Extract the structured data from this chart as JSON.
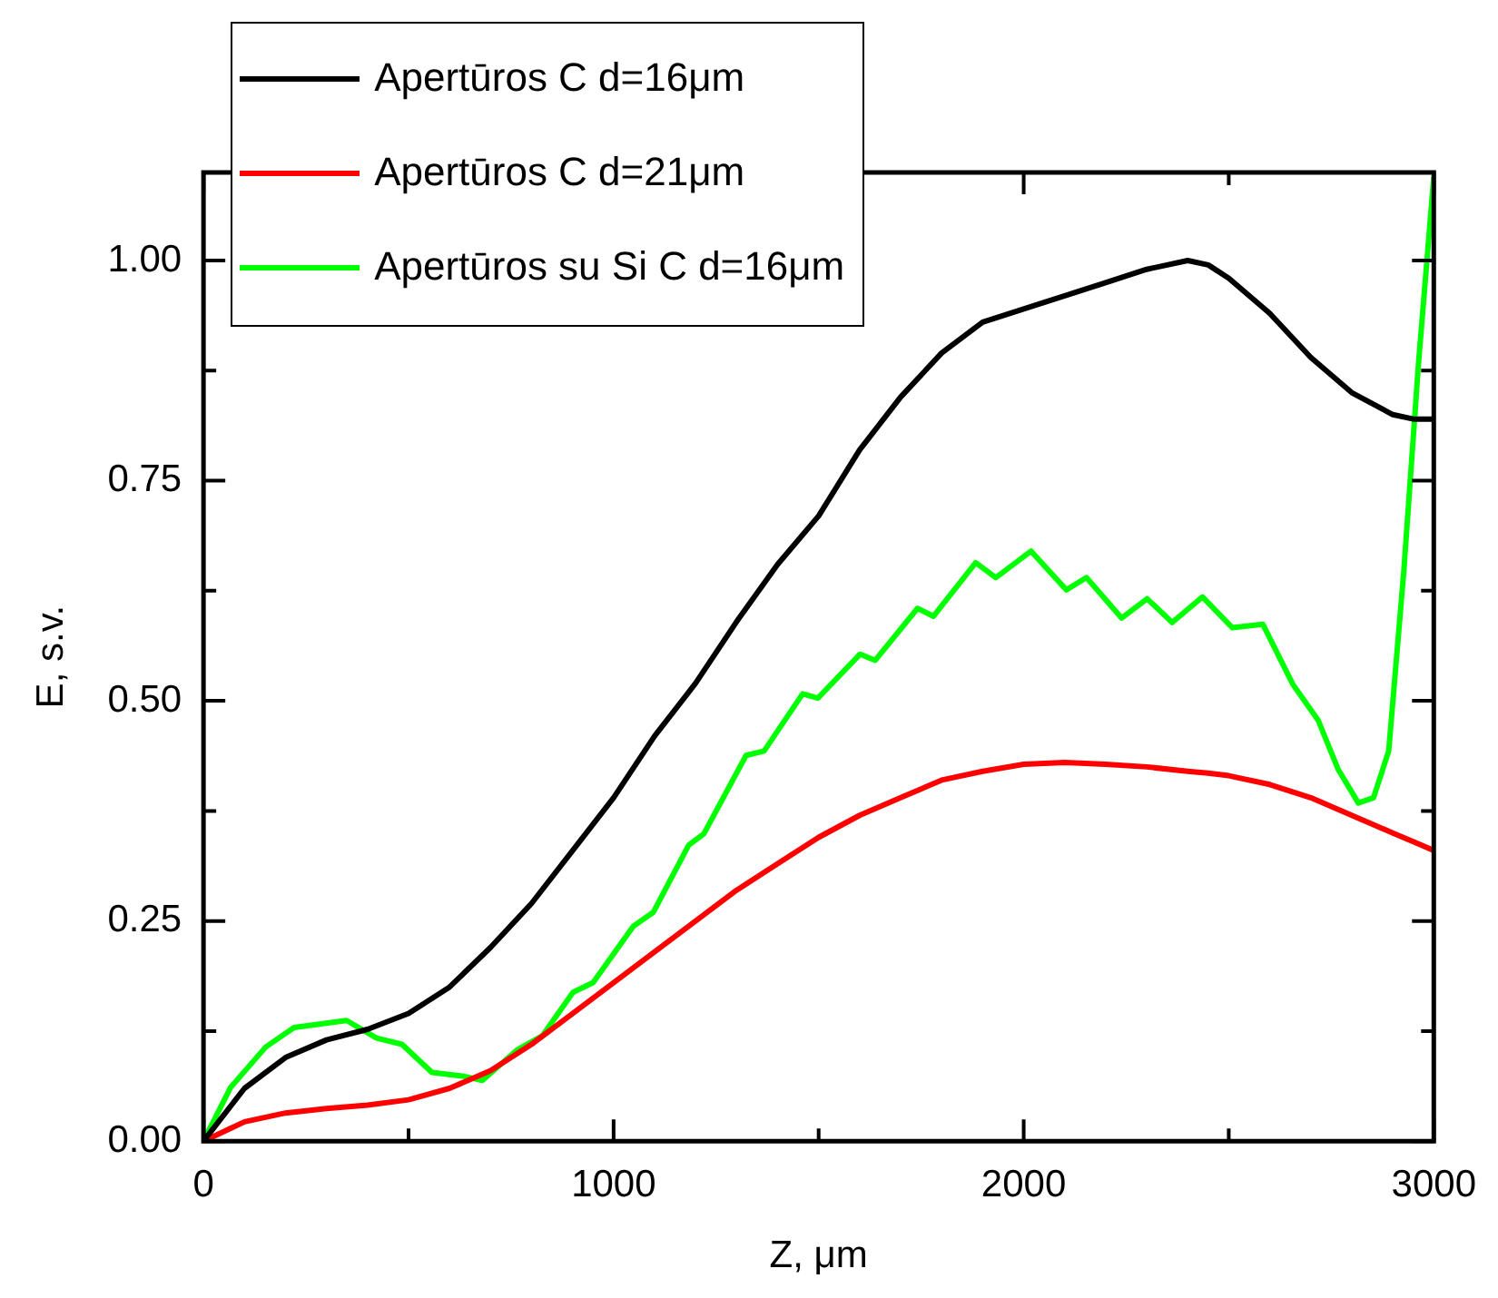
{
  "chart_data": {
    "type": "line",
    "xlabel": "Z, μm",
    "ylabel": "E, s.v.",
    "legend": "top left",
    "marker": "none",
    "line_style": "solid",
    "xlim": [
      0,
      3000
    ],
    "ylim": [
      0,
      1.1
    ],
    "xticks": [
      0,
      {
        "value": 500,
        "label": null
      },
      1000,
      {
        "value": 1500,
        "label": null
      },
      2000,
      {
        "value": 2500,
        "label": null
      },
      3000
    ],
    "yticks": [
      {
        "value": 0,
        "label": "0.00"
      },
      {
        "value": 0.125,
        "label": null
      },
      {
        "value": 0.25,
        "label": "0.25"
      },
      {
        "value": 0.375,
        "label": null
      },
      {
        "value": 0.5,
        "label": "0.50"
      },
      {
        "value": 0.625,
        "label": null
      },
      {
        "value": 0.75,
        "label": "0.75"
      },
      {
        "value": 0.875,
        "label": null
      },
      {
        "value": 1,
        "label": "1.00"
      }
    ],
    "x": [
      0,
      100,
      200,
      300,
      400,
      500,
      600,
      700,
      800,
      900,
      1000,
      1100,
      1200,
      1300,
      1400,
      1500,
      1600,
      1700,
      1800,
      1900,
      2000,
      2100,
      2200,
      2300,
      2400,
      2450,
      2500,
      2600,
      2700,
      2800,
      2900,
      2950,
      3000
    ],
    "series": [
      {
        "name": "Apertūros C d=16μm",
        "color": "#000000",
        "values": [
          0,
          0.06,
          0.095,
          0.115,
          0.127,
          0.145,
          0.175,
          0.22,
          0.27,
          0.33,
          0.39,
          0.46,
          0.52,
          0.59,
          0.655,
          0.71,
          0.785,
          0.845,
          0.895,
          0.93,
          0.945,
          0.96,
          0.975,
          0.99,
          1.0,
          0.995,
          0.98,
          0.94,
          0.89,
          0.85,
          0.825,
          0.82,
          0.82
        ]
      },
      {
        "name": "Apertūros C d=21μm",
        "color": "#ff0000",
        "values": [
          0,
          0.022,
          0.032,
          0.037,
          0.041,
          0.047,
          0.06,
          0.08,
          0.11,
          0.145,
          0.18,
          0.215,
          0.25,
          0.285,
          0.315,
          0.345,
          0.37,
          0.39,
          0.41,
          0.42,
          0.428,
          0.43,
          0.428,
          0.425,
          0.42,
          0.418,
          0.415,
          0.405,
          0.39,
          0.37,
          0.35,
          0.34,
          0.33
        ]
      },
      {
        "name": "Apertūros su Si C d=16μm",
        "color": "#00ff00",
        "x": [
          0,
          66,
          152,
          221,
          349,
          422,
          484,
          557,
          631,
          680,
          766,
          827,
          901,
          950,
          1048,
          1097,
          1183,
          1220,
          1323,
          1367,
          1461,
          1498,
          1601,
          1638,
          1741,
          1780,
          1883,
          1932,
          2018,
          2104,
          2153,
          2239,
          2301,
          2362,
          2436,
          2509,
          2583,
          2656,
          2718,
          2767,
          2816,
          2853,
          2890,
          2927,
          2963,
          3000
        ],
        "values": [
          0,
          0.061,
          0.107,
          0.129,
          0.137,
          0.117,
          0.11,
          0.078,
          0.074,
          0.069,
          0.104,
          0.12,
          0.169,
          0.18,
          0.244,
          0.26,
          0.336,
          0.349,
          0.438,
          0.443,
          0.508,
          0.503,
          0.553,
          0.546,
          0.605,
          0.596,
          0.657,
          0.64,
          0.67,
          0.626,
          0.64,
          0.594,
          0.616,
          0.589,
          0.618,
          0.583,
          0.587,
          0.519,
          0.478,
          0.422,
          0.384,
          0.39,
          0.443,
          0.648,
          0.885,
          1.095
        ]
      }
    ]
  }
}
